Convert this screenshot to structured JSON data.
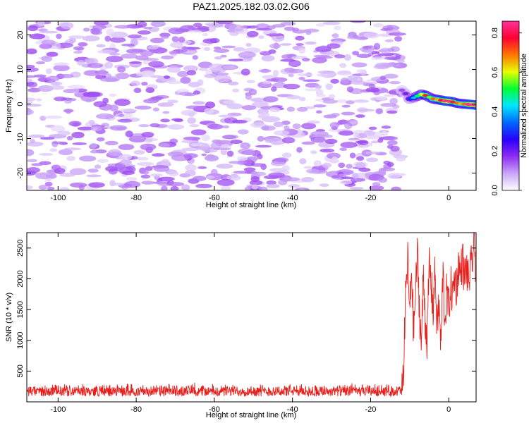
{
  "title": "PAZ1.2025.182.03.02.G06",
  "chart_data": [
    {
      "type": "heatmap",
      "xlabel": "Height of straight line (km)",
      "ylabel": "Frequency (Hz)",
      "xlim": [
        -108,
        7
      ],
      "ylim": [
        -25,
        24
      ],
      "x_ticks": [
        "-100",
        "-80",
        "-60",
        "-40",
        "-20",
        "0"
      ],
      "y_ticks": [
        "20",
        "10",
        "0",
        "-10",
        "-20"
      ],
      "colorbar": {
        "label": "Normalized spectral amplitude",
        "range": [
          0,
          0.86
        ],
        "ticks": [
          "0.0",
          "0.2",
          "0.4",
          "0.6",
          "0.8"
        ],
        "colors": [
          "#ffffff",
          "#c9a6f7",
          "#8f2cf0",
          "#2a00ff",
          "#0066ff",
          "#00e6ff",
          "#00ff33",
          "#e6ff00",
          "#ff7700",
          "#ff0033",
          "#ff3399"
        ]
      },
      "noise_region_x": [
        -108,
        -12
      ],
      "noise_level": 0.14,
      "signal": [
        {
          "x": -12,
          "y": 4.0,
          "amplitude": 0.15
        },
        {
          "x": -11,
          "y": 3.0,
          "amplitude": 0.2
        },
        {
          "x": -10,
          "y": 1.5,
          "amplitude": 0.3
        },
        {
          "x": -9,
          "y": 1.8,
          "amplitude": 0.4
        },
        {
          "x": -8,
          "y": 2.3,
          "amplitude": 0.5
        },
        {
          "x": -7,
          "y": 2.8,
          "amplitude": 0.6
        },
        {
          "x": -6,
          "y": 2.5,
          "amplitude": 0.75
        },
        {
          "x": -5,
          "y": 2.0,
          "amplitude": 0.55
        },
        {
          "x": -4,
          "y": 1.5,
          "amplitude": 0.7
        },
        {
          "x": -3,
          "y": 1.3,
          "amplitude": 0.65
        },
        {
          "x": -2,
          "y": 1.1,
          "amplitude": 0.8
        },
        {
          "x": -1,
          "y": 0.9,
          "amplitude": 0.85
        },
        {
          "x": 0,
          "y": 0.8,
          "amplitude": 0.9
        },
        {
          "x": 1,
          "y": 0.6,
          "amplitude": 0.8
        },
        {
          "x": 2,
          "y": 0.3,
          "amplitude": 0.7
        },
        {
          "x": 3,
          "y": 0.1,
          "amplitude": 0.65
        },
        {
          "x": 4,
          "y": 0.0,
          "amplitude": 0.7
        },
        {
          "x": 5,
          "y": -0.1,
          "amplitude": 0.85
        },
        {
          "x": 6,
          "y": -0.2,
          "amplitude": 0.9
        },
        {
          "x": 7,
          "y": -0.3,
          "amplitude": 0.85
        }
      ]
    },
    {
      "type": "line",
      "xlabel": "Height of straight line (km)",
      "ylabel": "SNR (10 * v/v)",
      "xlim": [
        -108,
        7
      ],
      "ylim": [
        0,
        2750
      ],
      "x_ticks": [
        "-100",
        "-80",
        "-60",
        "-40",
        "-20",
        "0"
      ],
      "y_ticks": [
        "500",
        "1000",
        "1500",
        "2000",
        "2500"
      ],
      "line_color": "#e8201c",
      "series": [
        {
          "x": [
            -108,
            -100,
            -90,
            -80,
            -70,
            -60,
            -50,
            -40,
            -30,
            -20,
            -14,
            -12,
            -11.5,
            -11,
            -10.5,
            -10,
            -9.5,
            -9,
            -8.5,
            -8,
            -7.5,
            -7,
            -6.5,
            -6,
            -5.5,
            -5,
            -4.5,
            -4,
            -3.5,
            -3,
            -2.5,
            -2,
            -1.5,
            -1,
            -0.5,
            0,
            0.5,
            1,
            1.5,
            2,
            2.5,
            3,
            3.5,
            4,
            4.5,
            5,
            5.5,
            6,
            6.5,
            7
          ],
          "y": [
            170,
            180,
            170,
            160,
            170,
            160,
            150,
            170,
            160,
            180,
            170,
            200,
            600,
            1800,
            2300,
            1400,
            2200,
            1100,
            1800,
            2400,
            1500,
            900,
            2100,
            1300,
            1000,
            2250,
            1900,
            1500,
            2150,
            1200,
            1600,
            850,
            2150,
            1300,
            1800,
            1500,
            1900,
            1700,
            2050,
            1850,
            2250,
            2050,
            2350,
            2000,
            2200,
            1950,
            2100,
            2300,
            2600,
            2150
          ],
          "noise_band": [
            90,
            300
          ]
        }
      ]
    }
  ]
}
